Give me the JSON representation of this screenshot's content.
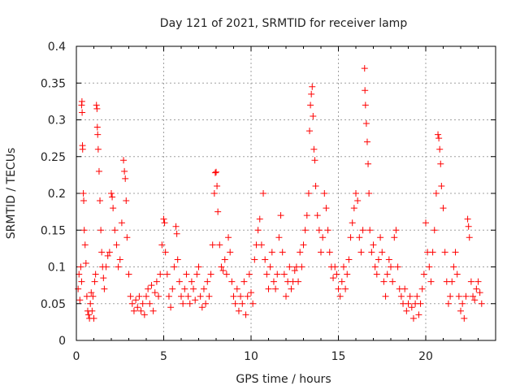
{
  "chart_data": {
    "type": "scatter",
    "title": "Day 121 of 2021, SRMTID for receiver lamp",
    "xlabel": "GPS time / hours",
    "ylabel": "SRMTID / TECUs",
    "xlim": [
      0,
      24
    ],
    "ylim": [
      0,
      0.4
    ],
    "grid": true,
    "legend": "none",
    "marker": "+",
    "marker_color": "#ff0000",
    "x_ticks": [
      0,
      5,
      10,
      15,
      20
    ],
    "x_tick_labels": [
      "0",
      "5",
      "10",
      "15",
      "20"
    ],
    "y_ticks": [
      0,
      0.05,
      0.1,
      0.15,
      0.2,
      0.25,
      0.3,
      0.35,
      0.4
    ],
    "y_tick_labels": [
      "0",
      "0.05",
      "0.1",
      "0.15",
      "0.2",
      "0.25",
      "0.3",
      "0.35",
      "0.4"
    ],
    "series": [
      {
        "name": "SRMTID",
        "points": [
          [
            0.1,
            0.07
          ],
          [
            0.15,
            0.09
          ],
          [
            0.2,
            0.055
          ],
          [
            0.25,
            0.1
          ],
          [
            0.3,
            0.08
          ],
          [
            0.3,
            0.32
          ],
          [
            0.32,
            0.325
          ],
          [
            0.33,
            0.31
          ],
          [
            0.35,
            0.265
          ],
          [
            0.36,
            0.26
          ],
          [
            0.4,
            0.2
          ],
          [
            0.42,
            0.19
          ],
          [
            0.45,
            0.15
          ],
          [
            0.5,
            0.13
          ],
          [
            0.55,
            0.105
          ],
          [
            0.6,
            0.06
          ],
          [
            0.65,
            0.04
          ],
          [
            0.7,
            0.035
          ],
          [
            0.75,
            0.03
          ],
          [
            0.8,
            0.05
          ],
          [
            0.85,
            0.065
          ],
          [
            0.9,
            0.04
          ],
          [
            0.95,
            0.06
          ],
          [
            1.0,
            0.03
          ],
          [
            1.05,
            0.08
          ],
          [
            1.1,
            0.09
          ],
          [
            1.15,
            0.32
          ],
          [
            1.18,
            0.315
          ],
          [
            1.2,
            0.29
          ],
          [
            1.22,
            0.28
          ],
          [
            1.25,
            0.26
          ],
          [
            1.3,
            0.23
          ],
          [
            1.35,
            0.19
          ],
          [
            1.4,
            0.15
          ],
          [
            1.45,
            0.12
          ],
          [
            1.5,
            0.1
          ],
          [
            1.55,
            0.085
          ],
          [
            1.6,
            0.07
          ],
          [
            1.7,
            0.1
          ],
          [
            1.8,
            0.115
          ],
          [
            1.9,
            0.12
          ],
          [
            2.0,
            0.2
          ],
          [
            2.05,
            0.195
          ],
          [
            2.1,
            0.18
          ],
          [
            2.2,
            0.15
          ],
          [
            2.3,
            0.13
          ],
          [
            2.4,
            0.1
          ],
          [
            2.5,
            0.11
          ],
          [
            2.6,
            0.16
          ],
          [
            2.7,
            0.245
          ],
          [
            2.75,
            0.23
          ],
          [
            2.8,
            0.22
          ],
          [
            2.85,
            0.19
          ],
          [
            2.9,
            0.14
          ],
          [
            3.0,
            0.09
          ],
          [
            3.1,
            0.06
          ],
          [
            3.2,
            0.05
          ],
          [
            3.3,
            0.04
          ],
          [
            3.4,
            0.055
          ],
          [
            3.5,
            0.045
          ],
          [
            3.6,
            0.06
          ],
          [
            3.7,
            0.04
          ],
          [
            3.8,
            0.05
          ],
          [
            3.9,
            0.035
          ],
          [
            4.0,
            0.06
          ],
          [
            4.1,
            0.07
          ],
          [
            4.2,
            0.05
          ],
          [
            4.3,
            0.075
          ],
          [
            4.4,
            0.04
          ],
          [
            4.5,
            0.065
          ],
          [
            4.6,
            0.08
          ],
          [
            4.7,
            0.06
          ],
          [
            4.8,
            0.09
          ],
          [
            4.9,
            0.13
          ],
          [
            5.0,
            0.165
          ],
          [
            5.05,
            0.16
          ],
          [
            5.1,
            0.12
          ],
          [
            5.2,
            0.09
          ],
          [
            5.3,
            0.06
          ],
          [
            5.4,
            0.045
          ],
          [
            5.5,
            0.07
          ],
          [
            5.6,
            0.1
          ],
          [
            5.7,
            0.155
          ],
          [
            5.75,
            0.145
          ],
          [
            5.8,
            0.11
          ],
          [
            5.9,
            0.08
          ],
          [
            6.0,
            0.06
          ],
          [
            6.1,
            0.05
          ],
          [
            6.2,
            0.07
          ],
          [
            6.3,
            0.09
          ],
          [
            6.4,
            0.06
          ],
          [
            6.5,
            0.05
          ],
          [
            6.6,
            0.08
          ],
          [
            6.7,
            0.07
          ],
          [
            6.8,
            0.055
          ],
          [
            6.9,
            0.09
          ],
          [
            7.0,
            0.1
          ],
          [
            7.1,
            0.06
          ],
          [
            7.2,
            0.045
          ],
          [
            7.3,
            0.07
          ],
          [
            7.4,
            0.05
          ],
          [
            7.5,
            0.08
          ],
          [
            7.6,
            0.06
          ],
          [
            7.7,
            0.09
          ],
          [
            7.8,
            0.13
          ],
          [
            7.9,
            0.2
          ],
          [
            7.95,
            0.228
          ],
          [
            8.0,
            0.229
          ],
          [
            8.05,
            0.21
          ],
          [
            8.1,
            0.175
          ],
          [
            8.2,
            0.13
          ],
          [
            8.3,
            0.1
          ],
          [
            8.4,
            0.095
          ],
          [
            8.5,
            0.11
          ],
          [
            8.6,
            0.09
          ],
          [
            8.7,
            0.14
          ],
          [
            8.8,
            0.12
          ],
          [
            8.9,
            0.08
          ],
          [
            9.0,
            0.06
          ],
          [
            9.1,
            0.05
          ],
          [
            9.2,
            0.07
          ],
          [
            9.3,
            0.04
          ],
          [
            9.4,
            0.06
          ],
          [
            9.5,
            0.05
          ],
          [
            9.6,
            0.08
          ],
          [
            9.7,
            0.035
          ],
          [
            9.8,
            0.06
          ],
          [
            9.9,
            0.09
          ],
          [
            10.0,
            0.065
          ],
          [
            10.1,
            0.05
          ],
          [
            10.2,
            0.11
          ],
          [
            10.3,
            0.13
          ],
          [
            10.4,
            0.15
          ],
          [
            10.5,
            0.165
          ],
          [
            10.6,
            0.13
          ],
          [
            10.7,
            0.2
          ],
          [
            10.8,
            0.11
          ],
          [
            10.9,
            0.09
          ],
          [
            11.0,
            0.07
          ],
          [
            11.1,
            0.1
          ],
          [
            11.2,
            0.12
          ],
          [
            11.3,
            0.08
          ],
          [
            11.4,
            0.07
          ],
          [
            11.5,
            0.09
          ],
          [
            11.6,
            0.14
          ],
          [
            11.7,
            0.17
          ],
          [
            11.8,
            0.12
          ],
          [
            11.9,
            0.09
          ],
          [
            12.0,
            0.06
          ],
          [
            12.1,
            0.08
          ],
          [
            12.2,
            0.1
          ],
          [
            12.3,
            0.07
          ],
          [
            12.4,
            0.08
          ],
          [
            12.5,
            0.095
          ],
          [
            12.6,
            0.1
          ],
          [
            12.7,
            0.08
          ],
          [
            12.8,
            0.12
          ],
          [
            12.9,
            0.1
          ],
          [
            13.0,
            0.13
          ],
          [
            13.1,
            0.15
          ],
          [
            13.2,
            0.17
          ],
          [
            13.3,
            0.2
          ],
          [
            13.35,
            0.285
          ],
          [
            13.4,
            0.32
          ],
          [
            13.45,
            0.335
          ],
          [
            13.5,
            0.345
          ],
          [
            13.55,
            0.305
          ],
          [
            13.6,
            0.26
          ],
          [
            13.65,
            0.245
          ],
          [
            13.7,
            0.21
          ],
          [
            13.8,
            0.17
          ],
          [
            13.9,
            0.15
          ],
          [
            14.0,
            0.12
          ],
          [
            14.1,
            0.14
          ],
          [
            14.2,
            0.2
          ],
          [
            14.3,
            0.18
          ],
          [
            14.4,
            0.15
          ],
          [
            14.5,
            0.12
          ],
          [
            14.6,
            0.1
          ],
          [
            14.7,
            0.085
          ],
          [
            14.8,
            0.1
          ],
          [
            14.9,
            0.09
          ],
          [
            15.0,
            0.07
          ],
          [
            15.1,
            0.06
          ],
          [
            15.2,
            0.08
          ],
          [
            15.3,
            0.1
          ],
          [
            15.4,
            0.07
          ],
          [
            15.5,
            0.09
          ],
          [
            15.6,
            0.11
          ],
          [
            15.7,
            0.14
          ],
          [
            15.8,
            0.16
          ],
          [
            15.9,
            0.18
          ],
          [
            16.0,
            0.2
          ],
          [
            16.1,
            0.19
          ],
          [
            16.2,
            0.14
          ],
          [
            16.3,
            0.12
          ],
          [
            16.4,
            0.15
          ],
          [
            16.5,
            0.37
          ],
          [
            16.52,
            0.34
          ],
          [
            16.55,
            0.32
          ],
          [
            16.6,
            0.295
          ],
          [
            16.65,
            0.27
          ],
          [
            16.7,
            0.24
          ],
          [
            16.75,
            0.2
          ],
          [
            16.8,
            0.15
          ],
          [
            16.9,
            0.12
          ],
          [
            17.0,
            0.13
          ],
          [
            17.1,
            0.1
          ],
          [
            17.2,
            0.09
          ],
          [
            17.3,
            0.11
          ],
          [
            17.4,
            0.14
          ],
          [
            17.5,
            0.12
          ],
          [
            17.6,
            0.08
          ],
          [
            17.7,
            0.06
          ],
          [
            17.8,
            0.09
          ],
          [
            17.9,
            0.11
          ],
          [
            18.0,
            0.1
          ],
          [
            18.1,
            0.08
          ],
          [
            18.2,
            0.14
          ],
          [
            18.3,
            0.15
          ],
          [
            18.4,
            0.1
          ],
          [
            18.5,
            0.07
          ],
          [
            18.6,
            0.06
          ],
          [
            18.7,
            0.05
          ],
          [
            18.8,
            0.07
          ],
          [
            18.9,
            0.04
          ],
          [
            19.0,
            0.05
          ],
          [
            19.1,
            0.06
          ],
          [
            19.2,
            0.045
          ],
          [
            19.3,
            0.03
          ],
          [
            19.4,
            0.05
          ],
          [
            19.5,
            0.06
          ],
          [
            19.6,
            0.035
          ],
          [
            19.7,
            0.05
          ],
          [
            19.8,
            0.07
          ],
          [
            19.9,
            0.09
          ],
          [
            20.0,
            0.16
          ],
          [
            20.1,
            0.12
          ],
          [
            20.2,
            0.1
          ],
          [
            20.3,
            0.08
          ],
          [
            20.4,
            0.12
          ],
          [
            20.5,
            0.15
          ],
          [
            20.6,
            0.2
          ],
          [
            20.7,
            0.28
          ],
          [
            20.75,
            0.275
          ],
          [
            20.8,
            0.26
          ],
          [
            20.85,
            0.24
          ],
          [
            20.9,
            0.21
          ],
          [
            21.0,
            0.18
          ],
          [
            21.1,
            0.12
          ],
          [
            21.2,
            0.08
          ],
          [
            21.3,
            0.05
          ],
          [
            21.4,
            0.06
          ],
          [
            21.5,
            0.08
          ],
          [
            21.6,
            0.1
          ],
          [
            21.7,
            0.12
          ],
          [
            21.8,
            0.09
          ],
          [
            21.9,
            0.06
          ],
          [
            22.0,
            0.04
          ],
          [
            22.1,
            0.05
          ],
          [
            22.2,
            0.03
          ],
          [
            22.3,
            0.06
          ],
          [
            22.4,
            0.165
          ],
          [
            22.45,
            0.155
          ],
          [
            22.5,
            0.14
          ],
          [
            22.6,
            0.08
          ],
          [
            22.7,
            0.06
          ],
          [
            22.8,
            0.055
          ],
          [
            22.9,
            0.07
          ],
          [
            23.0,
            0.08
          ],
          [
            23.1,
            0.065
          ],
          [
            23.2,
            0.05
          ]
        ]
      }
    ]
  }
}
